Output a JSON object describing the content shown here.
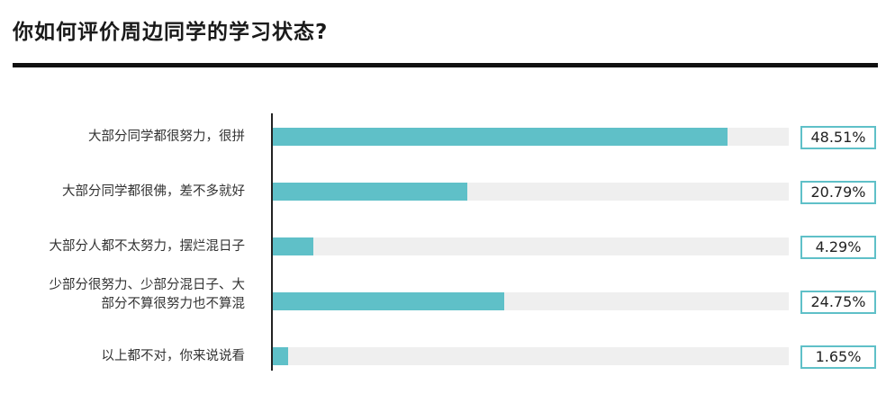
{
  "title": "你如何评价周边同学的学习状态?",
  "colors": {
    "bar": "#5fc0c8",
    "track": "#efefef",
    "rule": "#111111"
  },
  "chart_data": {
    "type": "bar",
    "orientation": "horizontal",
    "title": "你如何评价周边同学的学习状态?",
    "categories": [
      "大部分同学都很努力，很拼",
      "大部分同学都很佛，差不多就好",
      "大部分人都不太努力，摆烂混日子",
      "少部分很努力、少部分混日子、大\n部分不算很努力也不算混",
      "以上都不对，你来说说看"
    ],
    "values": [
      48.51,
      20.79,
      4.29,
      24.75,
      1.65
    ],
    "value_labels": [
      "48.51%",
      "20.79%",
      "4.29%",
      "24.75%",
      "1.65%"
    ],
    "xlim": [
      0,
      100
    ],
    "unit": "%",
    "grid": false,
    "legend": "none"
  }
}
